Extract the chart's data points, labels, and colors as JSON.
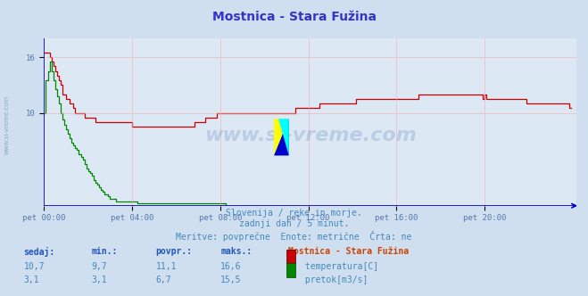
{
  "title": "Mostnica - Stara Fužina",
  "title_color": "#3333cc",
  "bg_color": "#d0dff0",
  "plot_bg_color": "#dde8f5",
  "grid_color": "#ffaaaa",
  "text_color": "#4488bb",
  "watermark": "www.si-vreme.com",
  "subtitle_lines": [
    "Slovenija / reke in morje.",
    "zadnji dan / 5 minut.",
    "Meritve: povprečne  Enote: metrične  Črta: ne"
  ],
  "xlabel_ticks": [
    "pet 00:00",
    "pet 04:00",
    "pet 08:00",
    "pet 12:00",
    "pet 16:00",
    "pet 20:00"
  ],
  "tick_x_positions": [
    0,
    48,
    96,
    144,
    192,
    240
  ],
  "ylabel_ticks": [
    "16",
    "10"
  ],
  "ytick_positions": [
    16,
    10
  ],
  "ylim": [
    0,
    18
  ],
  "xlim": [
    0,
    290
  ],
  "legend_title": "Mostnica - Stara Fužina",
  "table_headers": [
    "sedaj:",
    "min.:",
    "povpr.:",
    "maks.:"
  ],
  "table_row1": [
    "10,7",
    "9,7",
    "11,1",
    "16,6"
  ],
  "table_row2": [
    "3,1",
    "3,1",
    "6,7",
    "15,5"
  ],
  "temp_color": "#cc0000",
  "flow_color": "#008800",
  "blue_line_color": "#0000cc",
  "tick_color": "#5577aa",
  "header_color": "#2255bb",
  "legend_title_color": "#cc4400",
  "n_points": 288
}
